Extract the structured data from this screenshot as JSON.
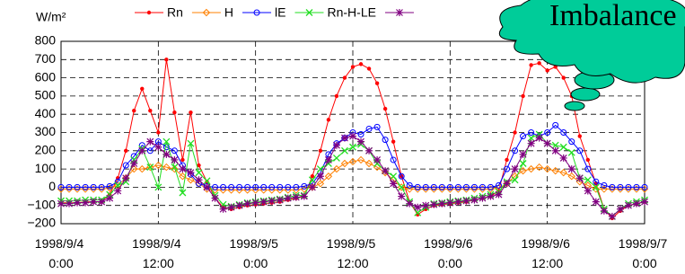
{
  "chart_data": {
    "type": "line",
    "y_label": "W/m²",
    "annotation": "Imbalance",
    "x": [
      "1998/9/4 0:00",
      "1998/9/4 1:00",
      "1998/9/4 2:00",
      "1998/9/4 3:00",
      "1998/9/4 4:00",
      "1998/9/4 5:00",
      "1998/9/4 6:00",
      "1998/9/4 7:00",
      "1998/9/4 8:00",
      "1998/9/4 9:00",
      "1998/9/4 10:00",
      "1998/9/4 11:00",
      "1998/9/4 12:00",
      "1998/9/4 13:00",
      "1998/9/4 14:00",
      "1998/9/4 15:00",
      "1998/9/4 16:00",
      "1998/9/4 17:00",
      "1998/9/4 18:00",
      "1998/9/4 19:00",
      "1998/9/4 20:00",
      "1998/9/4 21:00",
      "1998/9/4 22:00",
      "1998/9/4 23:00",
      "1998/9/5 0:00",
      "1998/9/5 1:00",
      "1998/9/5 2:00",
      "1998/9/5 3:00",
      "1998/9/5 4:00",
      "1998/9/5 5:00",
      "1998/9/5 6:00",
      "1998/9/5 7:00",
      "1998/9/5 8:00",
      "1998/9/5 9:00",
      "1998/9/5 10:00",
      "1998/9/5 11:00",
      "1998/9/5 12:00",
      "1998/9/5 13:00",
      "1998/9/5 14:00",
      "1998/9/5 15:00",
      "1998/9/5 16:00",
      "1998/9/5 17:00",
      "1998/9/5 18:00",
      "1998/9/5 19:00",
      "1998/9/5 20:00",
      "1998/9/5 21:00",
      "1998/9/5 22:00",
      "1998/9/5 23:00",
      "1998/9/6 0:00",
      "1998/9/6 1:00",
      "1998/9/6 2:00",
      "1998/9/6 3:00",
      "1998/9/6 4:00",
      "1998/9/6 5:00",
      "1998/9/6 6:00",
      "1998/9/6 7:00",
      "1998/9/6 8:00",
      "1998/9/6 9:00",
      "1998/9/6 10:00",
      "1998/9/6 11:00",
      "1998/9/6 12:00",
      "1998/9/6 13:00",
      "1998/9/6 14:00",
      "1998/9/6 15:00",
      "1998/9/6 16:00",
      "1998/9/6 17:00",
      "1998/9/6 18:00",
      "1998/9/6 19:00",
      "1998/9/6 20:00",
      "1998/9/6 21:00",
      "1998/9/6 22:00",
      "1998/9/6 23:00",
      "1998/9/7 0:00"
    ],
    "xlim": [
      "1998/9/4 0:00",
      "1998/9/7 0:00"
    ],
    "xticks": [
      "1998/9/4 0:00",
      "1998/9/4 12:00",
      "1998/9/5 0:00",
      "1998/9/5 12:00",
      "1998/9/6 0:00",
      "1998/9/6 12:00",
      "1998/9/7 0:00"
    ],
    "ylim": [
      -200,
      800
    ],
    "yticks": [
      {
        "value": -200,
        "label": "−200"
      },
      {
        "value": -100,
        "label": "−100"
      },
      0,
      100,
      200,
      300,
      400,
      500,
      600,
      700,
      800
    ],
    "grid": true,
    "series": [
      {
        "name": "Rn",
        "color": "#ff0000",
        "marker": "dot",
        "values": [
          -85,
          -85,
          -85,
          -80,
          -80,
          -80,
          -40,
          50,
          200,
          420,
          540,
          420,
          300,
          700,
          410,
          150,
          410,
          120,
          30,
          -60,
          -110,
          -120,
          -110,
          -100,
          -95,
          -90,
          -85,
          -80,
          -70,
          -60,
          -50,
          60,
          200,
          370,
          500,
          600,
          660,
          675,
          650,
          570,
          430,
          250,
          60,
          -80,
          -150,
          -120,
          -100,
          -95,
          -90,
          -85,
          -80,
          -70,
          -60,
          -50,
          -20,
          150,
          300,
          500,
          670,
          680,
          640,
          660,
          600,
          500,
          280,
          150,
          20,
          -120,
          -170,
          -130,
          -100,
          -90,
          -80
        ]
      },
      {
        "name": "H",
        "color": "#ff8000",
        "marker": "diamond",
        "values": [
          -10,
          -10,
          -10,
          -10,
          -10,
          -10,
          -5,
          10,
          50,
          100,
          100,
          110,
          120,
          110,
          100,
          60,
          40,
          20,
          -10,
          -15,
          -15,
          -15,
          -15,
          -15,
          -15,
          -15,
          -15,
          -15,
          -15,
          -15,
          -10,
          0,
          20,
          60,
          100,
          130,
          140,
          150,
          130,
          110,
          80,
          40,
          0,
          -10,
          -10,
          -10,
          -10,
          -10,
          -10,
          -10,
          -10,
          -10,
          -10,
          -10,
          -5,
          20,
          60,
          90,
          100,
          110,
          100,
          90,
          80,
          60,
          30,
          10,
          -10,
          -10,
          -10,
          -10,
          -10,
          -10,
          -10
        ]
      },
      {
        "name": "lE",
        "color": "#0000ff",
        "marker": "circle",
        "values": [
          0,
          0,
          0,
          0,
          0,
          0,
          5,
          30,
          120,
          170,
          230,
          200,
          250,
          220,
          200,
          120,
          70,
          20,
          5,
          0,
          0,
          0,
          0,
          0,
          0,
          0,
          0,
          0,
          0,
          0,
          5,
          20,
          80,
          180,
          240,
          270,
          300,
          290,
          320,
          330,
          260,
          150,
          60,
          10,
          0,
          0,
          0,
          0,
          0,
          0,
          0,
          0,
          0,
          0,
          10,
          100,
          200,
          280,
          300,
          280,
          300,
          340,
          300,
          250,
          200,
          100,
          30,
          10,
          0,
          0,
          0,
          0,
          0
        ]
      },
      {
        "name": "Rn-H-LE",
        "color": "#22dd22",
        "marker": "x",
        "values": [
          -75,
          -75,
          -75,
          -70,
          -70,
          -70,
          -40,
          10,
          30,
          150,
          210,
          110,
          0,
          250,
          110,
          -30,
          240,
          80,
          35,
          -45,
          -95,
          -105,
          -95,
          -85,
          -80,
          -75,
          -70,
          -65,
          -55,
          -45,
          -45,
          40,
          100,
          130,
          160,
          200,
          220,
          235,
          200,
          130,
          90,
          60,
          0,
          -80,
          -140,
          -110,
          -90,
          -85,
          -80,
          -75,
          -70,
          -60,
          -50,
          -40,
          -25,
          30,
          40,
          130,
          270,
          290,
          240,
          230,
          220,
          190,
          50,
          40,
          0,
          -120,
          -160,
          -120,
          -90,
          -80,
          -70
        ]
      },
      {
        "name": null,
        "color": "#800080",
        "marker": "star",
        "values": [
          -90,
          -90,
          -85,
          -85,
          -80,
          -80,
          -60,
          -20,
          50,
          130,
          200,
          250,
          220,
          180,
          150,
          100,
          80,
          40,
          0,
          -60,
          -120,
          -110,
          -100,
          -90,
          -85,
          -80,
          -75,
          -70,
          -60,
          -55,
          -50,
          0,
          60,
          150,
          230,
          270,
          280,
          250,
          200,
          150,
          90,
          20,
          -50,
          -90,
          -110,
          -100,
          -95,
          -90,
          -85,
          -80,
          -75,
          -70,
          -60,
          -50,
          -40,
          20,
          100,
          180,
          240,
          270,
          240,
          200,
          160,
          100,
          50,
          -20,
          -80,
          -130,
          -160,
          -120,
          -100,
          -90,
          -80
        ]
      }
    ]
  }
}
